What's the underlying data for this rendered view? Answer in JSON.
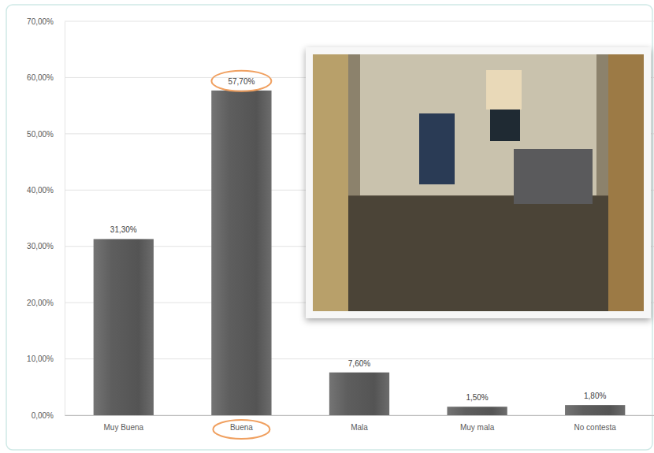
{
  "chart_data": {
    "type": "bar",
    "categories": [
      "Muy Buena",
      "Buena",
      "Mala",
      "Muy mala",
      "No contesta"
    ],
    "values": [
      31.3,
      57.7,
      7.6,
      1.5,
      1.8
    ],
    "value_labels": [
      "31,30%",
      "57,70%",
      "7,60%",
      "1,50%",
      "1,80%"
    ],
    "data_labels": true,
    "color": "#5e5e5e",
    "ylim": [
      0,
      70
    ],
    "yticks": [
      {
        "value": 0,
        "label": "0,00%"
      },
      {
        "value": 10,
        "label": "10,00%"
      },
      {
        "value": 20,
        "label": "20,00%"
      },
      {
        "value": 30,
        "label": "30,00%"
      },
      {
        "value": 40,
        "label": "40,00%"
      },
      {
        "value": 50,
        "label": "50,00%"
      },
      {
        "value": 60,
        "label": "60,00%"
      },
      {
        "value": 70,
        "label": "70,00%"
      }
    ],
    "grid": true
  }
}
